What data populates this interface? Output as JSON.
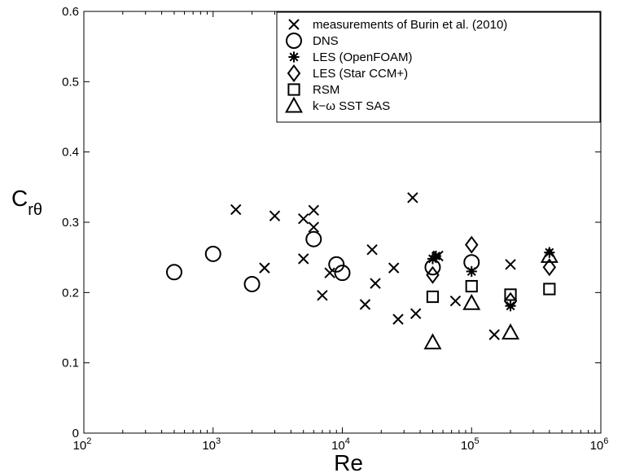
{
  "chart_data": {
    "type": "scatter",
    "xlabel": "Re",
    "ylabel": {
      "main": "C",
      "sub": "rθ"
    },
    "xscale": "log",
    "xlim": [
      100,
      1000000
    ],
    "ylim": [
      0,
      0.6
    ],
    "x_ticks": [
      {
        "value": 100,
        "base": "10",
        "exp": "2"
      },
      {
        "value": 1000,
        "base": "10",
        "exp": "3"
      },
      {
        "value": 10000,
        "base": "10",
        "exp": "4"
      },
      {
        "value": 100000,
        "base": "10",
        "exp": "5"
      },
      {
        "value": 1000000,
        "base": "10",
        "exp": "6"
      }
    ],
    "y_ticks": [
      {
        "value": 0,
        "label": "0"
      },
      {
        "value": 0.1,
        "label": "0.1"
      },
      {
        "value": 0.2,
        "label": "0.2"
      },
      {
        "value": 0.3,
        "label": "0.3"
      },
      {
        "value": 0.4,
        "label": "0.4"
      },
      {
        "value": 0.5,
        "label": "0.5"
      },
      {
        "value": 0.6,
        "label": "0.6"
      }
    ],
    "grid": false,
    "legend_position": "top-right",
    "series": [
      {
        "name": "measurements of Burin et al. (2010)",
        "marker": "x",
        "x": [
          1500,
          2500,
          3000,
          5000,
          5000,
          6000,
          6000,
          7000,
          8000,
          15000,
          17000,
          18000,
          25000,
          27000,
          35000,
          37000,
          55000,
          75000,
          150000,
          200000
        ],
        "y": [
          0.318,
          0.235,
          0.309,
          0.305,
          0.248,
          0.317,
          0.293,
          0.196,
          0.228,
          0.183,
          0.261,
          0.213,
          0.235,
          0.162,
          0.335,
          0.17,
          0.252,
          0.188,
          0.14,
          0.24
        ]
      },
      {
        "name": "DNS",
        "marker": "circle",
        "x": [
          500,
          1000,
          2000,
          6000,
          9000,
          10000,
          50000,
          100000
        ],
        "y": [
          0.229,
          0.255,
          0.212,
          0.276,
          0.24,
          0.228,
          0.236,
          0.243
        ]
      },
      {
        "name": "LES (OpenFOAM)",
        "marker": "asterisk",
        "x": [
          50000,
          53000,
          100000,
          200000,
          400000
        ],
        "y": [
          0.248,
          0.252,
          0.23,
          0.181,
          0.257
        ]
      },
      {
        "name": "LES (Star CCM+)",
        "marker": "diamond",
        "x": [
          50000,
          100000,
          200000,
          400000
        ],
        "y": [
          0.225,
          0.268,
          0.188,
          0.236
        ]
      },
      {
        "name": "RSM",
        "marker": "square",
        "x": [
          50000,
          100000,
          200000,
          400000
        ],
        "y": [
          0.194,
          0.209,
          0.197,
          0.205
        ]
      },
      {
        "name": "k−ω SST SAS",
        "marker": "triangle",
        "x": [
          50000,
          100000,
          200000,
          400000
        ],
        "y": [
          0.129,
          0.185,
          0.143,
          0.252
        ]
      }
    ]
  }
}
